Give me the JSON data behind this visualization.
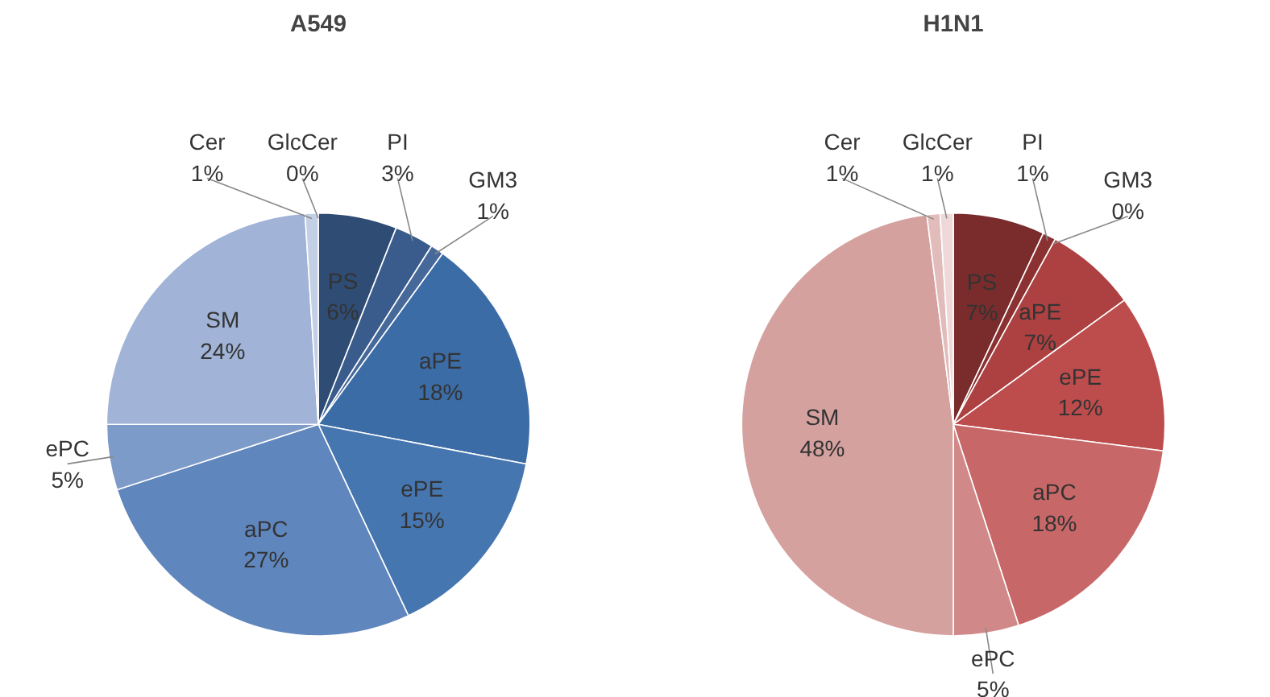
{
  "chart_data": [
    {
      "type": "pie",
      "title": "A549",
      "categories": [
        "PS",
        "PI",
        "GM3",
        "aPE",
        "ePE",
        "aPC",
        "ePC",
        "SM",
        "Cer",
        "GlcCer"
      ],
      "values": [
        6,
        3,
        1,
        18,
        15,
        27,
        5,
        24,
        1,
        0
      ],
      "value_labels": [
        "6%",
        "3%",
        "1%",
        "18%",
        "15%",
        "27%",
        "5%",
        "24%",
        "1%",
        "0%"
      ],
      "colors": [
        "#2f4c74",
        "#3a5c8c",
        "#47699a",
        "#3c6ca6",
        "#4676b0",
        "#5f86bd",
        "#7d9bc8",
        "#a1b3d6",
        "#c3cfe4",
        "#dfe5f0"
      ]
    },
    {
      "type": "pie",
      "title": "H1N1",
      "categories": [
        "PS",
        "PI",
        "GM3",
        "aPE",
        "ePE",
        "aPC",
        "ePC",
        "SM",
        "Cer",
        "GlcCer"
      ],
      "values": [
        7,
        1,
        0,
        7,
        12,
        18,
        5,
        48,
        1,
        1
      ],
      "value_labels": [
        "7%",
        "1%",
        "0%",
        "7%",
        "12%",
        "18%",
        "5%",
        "48%",
        "1%",
        "1%"
      ],
      "colors": [
        "#7a2c2c",
        "#8c3131",
        "#9c3838",
        "#ad4141",
        "#bd4c4c",
        "#c86767",
        "#d08988",
        "#d4a19f",
        "#e2bcbb",
        "#efd8d8"
      ]
    }
  ]
}
